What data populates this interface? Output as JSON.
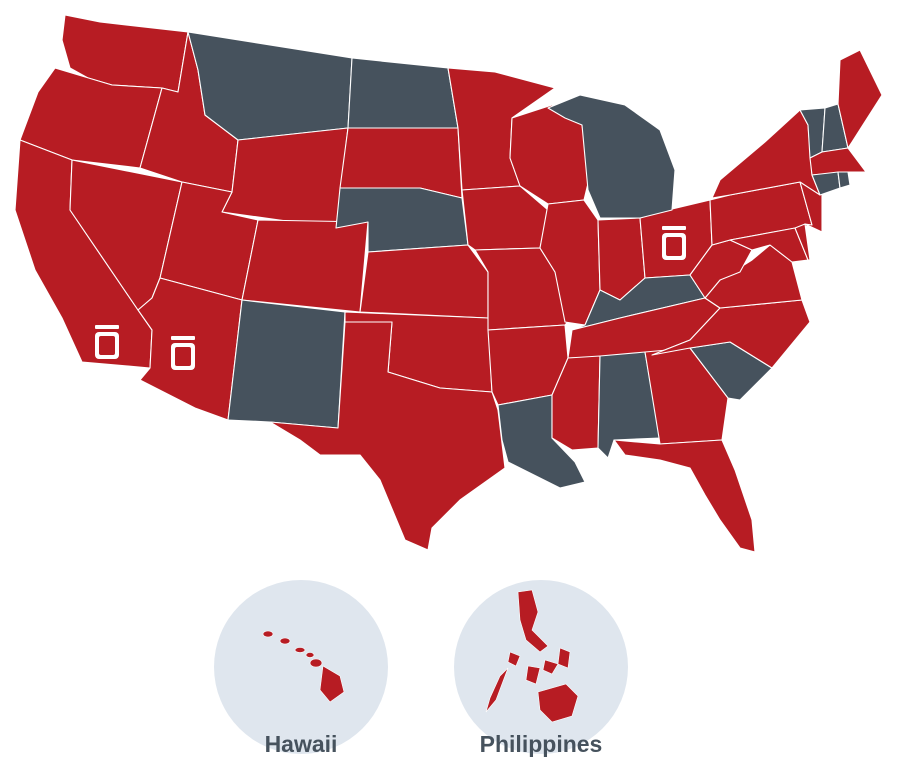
{
  "colors": {
    "active": "#b71c23",
    "inactive": "#46525d",
    "inset_bg": "#dfe6ee",
    "label": "#46525d",
    "border": "#ffffff"
  },
  "legend_icon": "jar-icon",
  "states": {
    "active": [
      "WA",
      "OR",
      "CA",
      "NV",
      "ID",
      "UT",
      "AZ",
      "WY",
      "CO",
      "SD",
      "KS",
      "OK",
      "TX",
      "MN",
      "IA",
      "MO",
      "AR",
      "MS",
      "GA",
      "FL",
      "TN",
      "NC",
      "VA",
      "WV",
      "MD",
      "DE",
      "NJ",
      "PA",
      "NY",
      "MA",
      "ME",
      "WI",
      "IL",
      "IN",
      "OH",
      "HI"
    ],
    "inactive": [
      "MT",
      "ND",
      "NE",
      "NM",
      "LA",
      "AL",
      "SC",
      "KY",
      "MI",
      "VT",
      "NH",
      "CT",
      "RI"
    ]
  },
  "markers": [
    {
      "state": "CA",
      "icon": "jar-icon"
    },
    {
      "state": "AZ",
      "icon": "jar-icon"
    },
    {
      "state": "OH",
      "icon": "jar-icon"
    }
  ],
  "insets": [
    {
      "id": "hawaii",
      "label": "Hawaii"
    },
    {
      "id": "philippines",
      "label": "Philippines"
    }
  ]
}
